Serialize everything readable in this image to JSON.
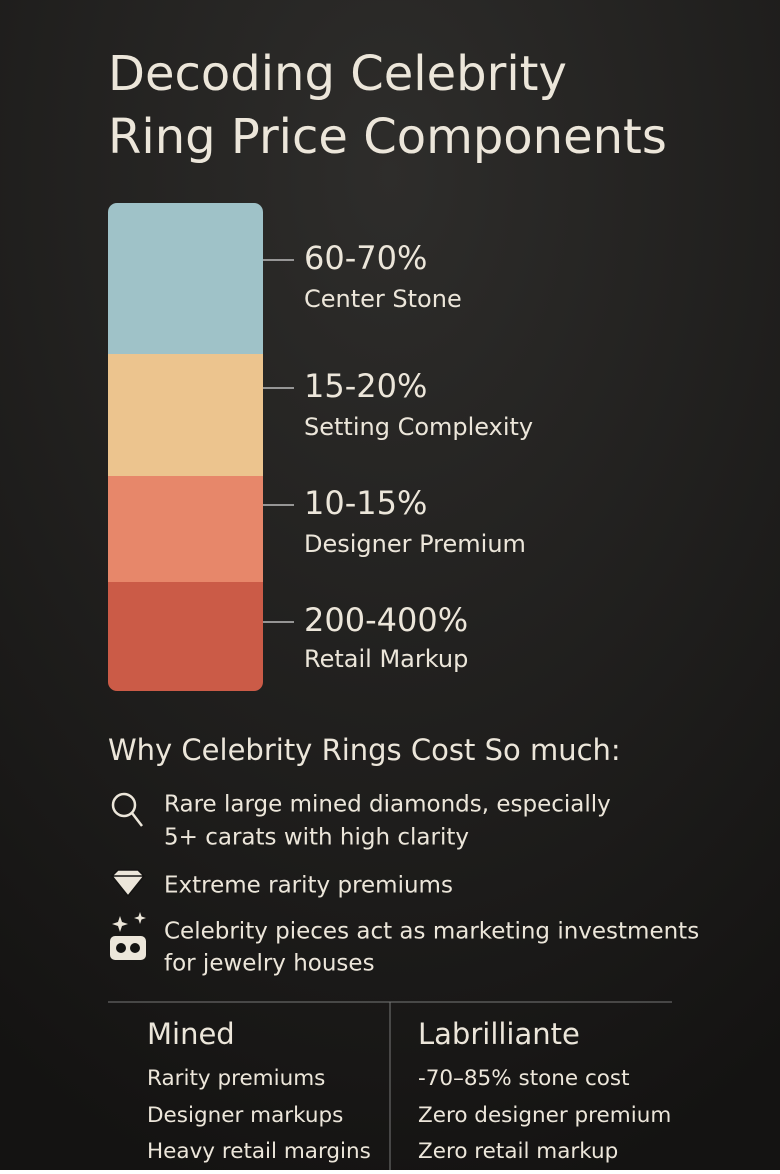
{
  "header": {
    "title": [
      "Decoding Celebrity",
      "Ring Price Components"
    ]
  },
  "components": [
    {
      "share": "60-70%",
      "label": "Center Stone"
    },
    {
      "share": "15-20%",
      "label": "Setting Complexity"
    },
    {
      "share": "10-15%",
      "label": "Designer Premium"
    },
    {
      "share": "200-400%",
      "label": "Retail Markup"
    }
  ],
  "reasons": {
    "heading": "Why Celebrity Rings Cost So much:",
    "items": [
      [
        "Rare large mined diamonds, especially",
        "5+ carats with high clarity"
      ],
      [
        "Extreme rarity premiums"
      ],
      [
        "Celebrity pieces act as marketing investments",
        "for jewelry houses"
      ]
    ]
  },
  "comparison": [
    {
      "title": "Mined",
      "items": [
        "Rarity premiums",
        "Designer markups",
        "Heavy retail margins"
      ]
    },
    {
      "title": "Labrilliante",
      "items": [
        "-70–85% stone cost",
        "Zero designer premium",
        "Zero retail markup"
      ]
    }
  ]
}
